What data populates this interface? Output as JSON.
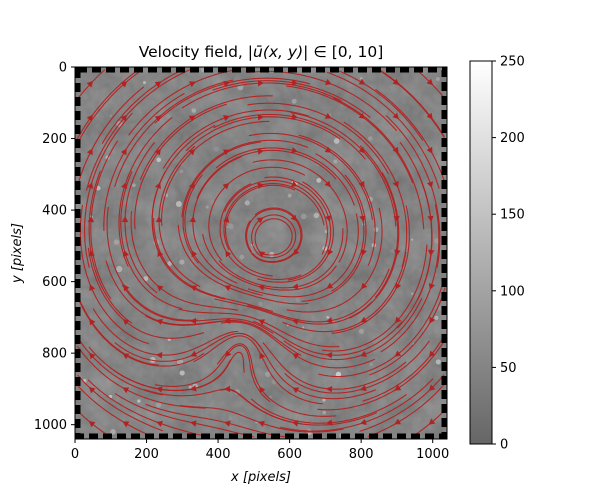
{
  "chart_data": {
    "type": "heatmap",
    "overlay": "streamplot",
    "title": "Velocity field, |ū(x,y)| ∈ [0, 10]",
    "title_parts": {
      "prefix": "Velocity field, |",
      "u": "ū",
      "args": "(x, y)",
      "suffix": "| ∈  [0, 10]"
    },
    "xlabel": {
      "var": "x",
      "unit": "[pixels]"
    },
    "ylabel": {
      "var": "y",
      "unit": "[pixels]"
    },
    "xlim": [
      0,
      1040
    ],
    "ylim": [
      1040,
      0
    ],
    "y_inverted": true,
    "xticks": [
      "0",
      "200",
      "400",
      "600",
      "800",
      "1000"
    ],
    "yticks": [
      "0",
      "200",
      "400",
      "600",
      "800",
      "1000"
    ],
    "xtick_values": [
      0,
      200,
      400,
      600,
      800,
      1000
    ],
    "ytick_values": [
      0,
      200,
      400,
      600,
      800,
      1000
    ],
    "colorbar": {
      "range": [
        0,
        250
      ],
      "ticks": [
        "0",
        "50",
        "100",
        "150",
        "200",
        "250"
      ],
      "tick_values": [
        0,
        50,
        100,
        150,
        200,
        250
      ],
      "colormap": "gray"
    },
    "image_mean_intensity": 110,
    "stream_color": "#b22222",
    "vortices": [
      {
        "x": 560,
        "y": 480,
        "strength": 1.0,
        "direction": "clockwise"
      },
      {
        "x": 470,
        "y": 760,
        "strength": -0.8,
        "direction": "counterclockwise"
      }
    ],
    "background_flow": "circulation around the center following the image border",
    "grid": false
  },
  "colors": {
    "stream": "#b22222",
    "frame_dash": "#000000",
    "background_gray": "#6e6e6e"
  }
}
